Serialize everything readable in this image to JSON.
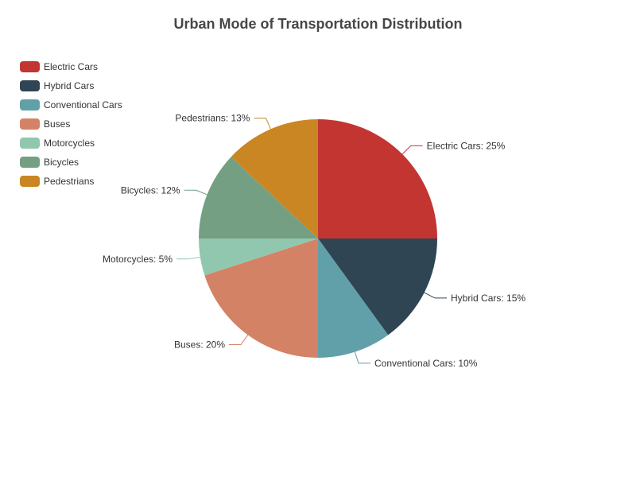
{
  "chart_data": {
    "type": "pie",
    "title": "Urban Mode of Transportation Distribution",
    "legend_position": "top-left",
    "categories": [
      "Electric Cars",
      "Hybrid Cars",
      "Conventional Cars",
      "Buses",
      "Motorcycles",
      "Bicycles",
      "Pedestrians"
    ],
    "values": [
      25,
      15,
      10,
      20,
      5,
      12,
      13
    ],
    "value_suffix": "%",
    "colors": [
      "#c23531",
      "#2f4554",
      "#61a0a8",
      "#d48265",
      "#91c7ae",
      "#749f83",
      "#ca8622"
    ],
    "slice_labels": [
      "Electric Cars: 25%",
      "Hybrid Cars: 15%",
      "Conventional Cars: 10%",
      "Buses: 20%",
      "Motorcycles: 5%",
      "Bicycles: 12%",
      "Pedestrians: 13%"
    ]
  }
}
